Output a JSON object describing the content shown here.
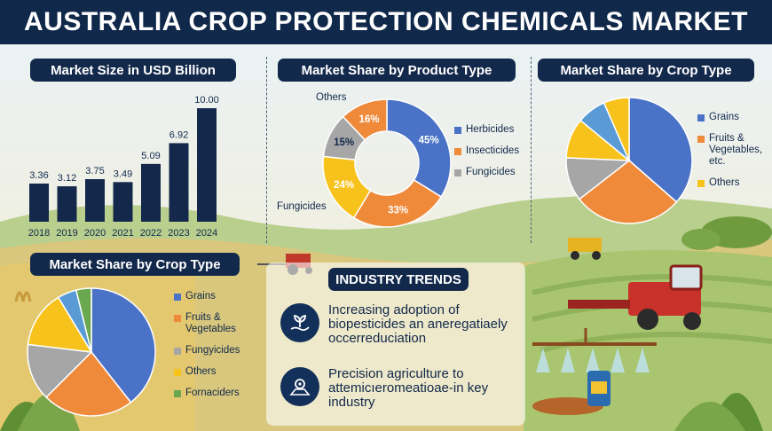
{
  "title": "AUSTRALIA CROP PROTECTION CHEMICALS MARKET",
  "colors": {
    "navy": "#13284a",
    "blue": "#4a72c6",
    "orange": "#ef8a3b",
    "gray": "#a6a6a6",
    "yellow": "#f7c21b",
    "lightblue": "#5b9bd5",
    "green": "#6aa84f"
  },
  "panels": {
    "market_size": {
      "title": "Market Size in USD Billion"
    },
    "product_type": {
      "title": "Market Share by Product Type"
    },
    "crop_type_top": {
      "title": "Market Share by Crop Type"
    },
    "crop_type_bottom": {
      "title": "Market Share by Crop Type"
    },
    "trends": {
      "title": "INDUSTRY TRENDS",
      "items": [
        {
          "icon": "seedling-hand-icon",
          "text": "Increasing adoption of biopesticides an aneregatiaely occerreduciation"
        },
        {
          "icon": "precision-agriculture-icon",
          "text": "Precision agriculture to attemicıeromeatioae-in key industry"
        }
      ]
    }
  },
  "chart_data": [
    {
      "type": "bar",
      "title": "Market Size in USD Billion",
      "categories": [
        "2018",
        "2019",
        "2020",
        "2021",
        "2022",
        "2023",
        "2024"
      ],
      "values": [
        3.36,
        3.12,
        3.75,
        3.49,
        5.09,
        6.92,
        10.0
      ],
      "value_labels": [
        "3.36",
        "3.12",
        "3.75",
        "3.49",
        "5.09",
        "6.92",
        "10.00"
      ],
      "ylim": [
        0,
        10.0
      ],
      "color": "#13284a",
      "grid": false
    },
    {
      "type": "pie",
      "donut": true,
      "title": "Market Share by Product Type",
      "slices": [
        {
          "name": "Herbicides",
          "value": 45,
          "label": "45%",
          "color": "#4a72c6"
        },
        {
          "name": "Insecticides",
          "value": 33,
          "label": "33%",
          "color": "#ef8a3b"
        },
        {
          "name": "Fungicides",
          "value": 24,
          "label": "24%",
          "color": "#f7c21b"
        },
        {
          "name": "",
          "value": 15,
          "label": "15%",
          "color": "#a6a6a6"
        },
        {
          "name": "Others",
          "value": 16,
          "label": "16%",
          "color": "#ef8a3b"
        }
      ],
      "legend": [
        "Herbicides",
        "Insecticides",
        "Fungicides"
      ],
      "legend_colors": [
        "#4a72c6",
        "#ef8a3b",
        "#a6a6a6"
      ],
      "callouts": [
        "Others",
        "Fungicides"
      ]
    },
    {
      "type": "pie",
      "title": "Market Share by Crop Type",
      "slices": [
        {
          "name": "Grains",
          "value": 39,
          "color": "#4a72c6"
        },
        {
          "name": "Fruits & Vegetables, etc.",
          "value": 30,
          "color": "#ef8a3b"
        },
        {
          "name": "",
          "value": 12,
          "color": "#a6a6a6"
        },
        {
          "name": "Others",
          "value": 11,
          "color": "#f7c21b"
        },
        {
          "name": "",
          "value": 8,
          "color": "#5b9bd5"
        },
        {
          "name": "",
          "value": 7,
          "color": "#f7c21b"
        }
      ],
      "legend": [
        "Grains",
        "Fruits & Vegetables, etc.",
        "Others"
      ],
      "legend_colors": [
        "#4a72c6",
        "#ef8a3b",
        "#f7c21b"
      ]
    },
    {
      "type": "pie",
      "title": "Market Share by Crop Type",
      "slices": [
        {
          "name": "Grains",
          "value": 41,
          "color": "#4a72c6"
        },
        {
          "name": "Fruits & Vegetables",
          "value": 24,
          "color": "#ef8a3b"
        },
        {
          "name": "Fungyicides",
          "value": 15,
          "color": "#a6a6a6"
        },
        {
          "name": "Others",
          "value": 15,
          "color": "#f7c21b"
        },
        {
          "name": "",
          "value": 5,
          "color": "#5b9bd5"
        },
        {
          "name": "Fornaciders",
          "value": 4,
          "color": "#6aa84f"
        }
      ],
      "legend": [
        "Grains",
        "Fruits & Vegetables",
        "Fungyicides",
        "Others",
        "Fornaciders"
      ],
      "legend_colors": [
        "#4a72c6",
        "#ef8a3b",
        "#a6a6a6",
        "#f7c21b",
        "#6aa84f"
      ]
    }
  ]
}
